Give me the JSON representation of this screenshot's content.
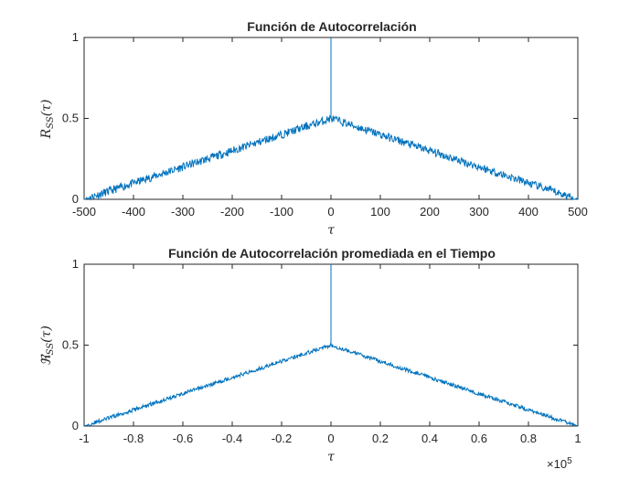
{
  "chart_data": [
    {
      "type": "line",
      "title": "Función de Autocorrelación",
      "xlabel_symbol": "τ",
      "ylabel_main": "R",
      "ylabel_sub": "SS",
      "ylabel_arg": "(τ)",
      "xlim": [
        -500,
        500
      ],
      "ylim": [
        0,
        1
      ],
      "xticks": [
        -500,
        -400,
        -300,
        -200,
        -100,
        0,
        100,
        200,
        300,
        400,
        500
      ],
      "xtick_labels": [
        "-500",
        "-400",
        "-300",
        "-200",
        "-100",
        "0",
        "100",
        "200",
        "300",
        "400",
        "500"
      ],
      "yticks": [
        0,
        0.5,
        1
      ],
      "ytick_labels": [
        "0",
        "0.5",
        "1"
      ],
      "color": "#0072BD",
      "grid": false,
      "series": [
        {
          "shape": "triangle",
          "peak_x": 0,
          "peak_value": 1.0,
          "base_value": 0.5,
          "noise_amplitude": 0.025
        }
      ]
    },
    {
      "type": "line",
      "title": "Función de Autocorrelación promediada en el Tiempo",
      "xlabel_symbol": "τ",
      "ylabel_main": "ℜ",
      "ylabel_sub": "SS",
      "ylabel_arg": "(τ)",
      "xlim": [
        -100000,
        100000
      ],
      "ylim": [
        0,
        1
      ],
      "xticks": [
        -100000,
        -80000,
        -60000,
        -40000,
        -20000,
        0,
        20000,
        40000,
        60000,
        80000,
        100000
      ],
      "xtick_labels": [
        "-1",
        "-0.8",
        "-0.6",
        "-0.4",
        "-0.2",
        "0",
        "0.2",
        "0.4",
        "0.6",
        "0.8",
        "1"
      ],
      "x_multiplier_base": "×10",
      "x_multiplier_exp": "5",
      "yticks": [
        0,
        0.5,
        1
      ],
      "ytick_labels": [
        "0",
        "0.5",
        "1"
      ],
      "color": "#0072BD",
      "grid": false,
      "series": [
        {
          "shape": "triangle",
          "peak_x": 0,
          "peak_value": 1.0,
          "base_value": 0.5,
          "noise_amplitude": 0.012
        }
      ]
    }
  ]
}
